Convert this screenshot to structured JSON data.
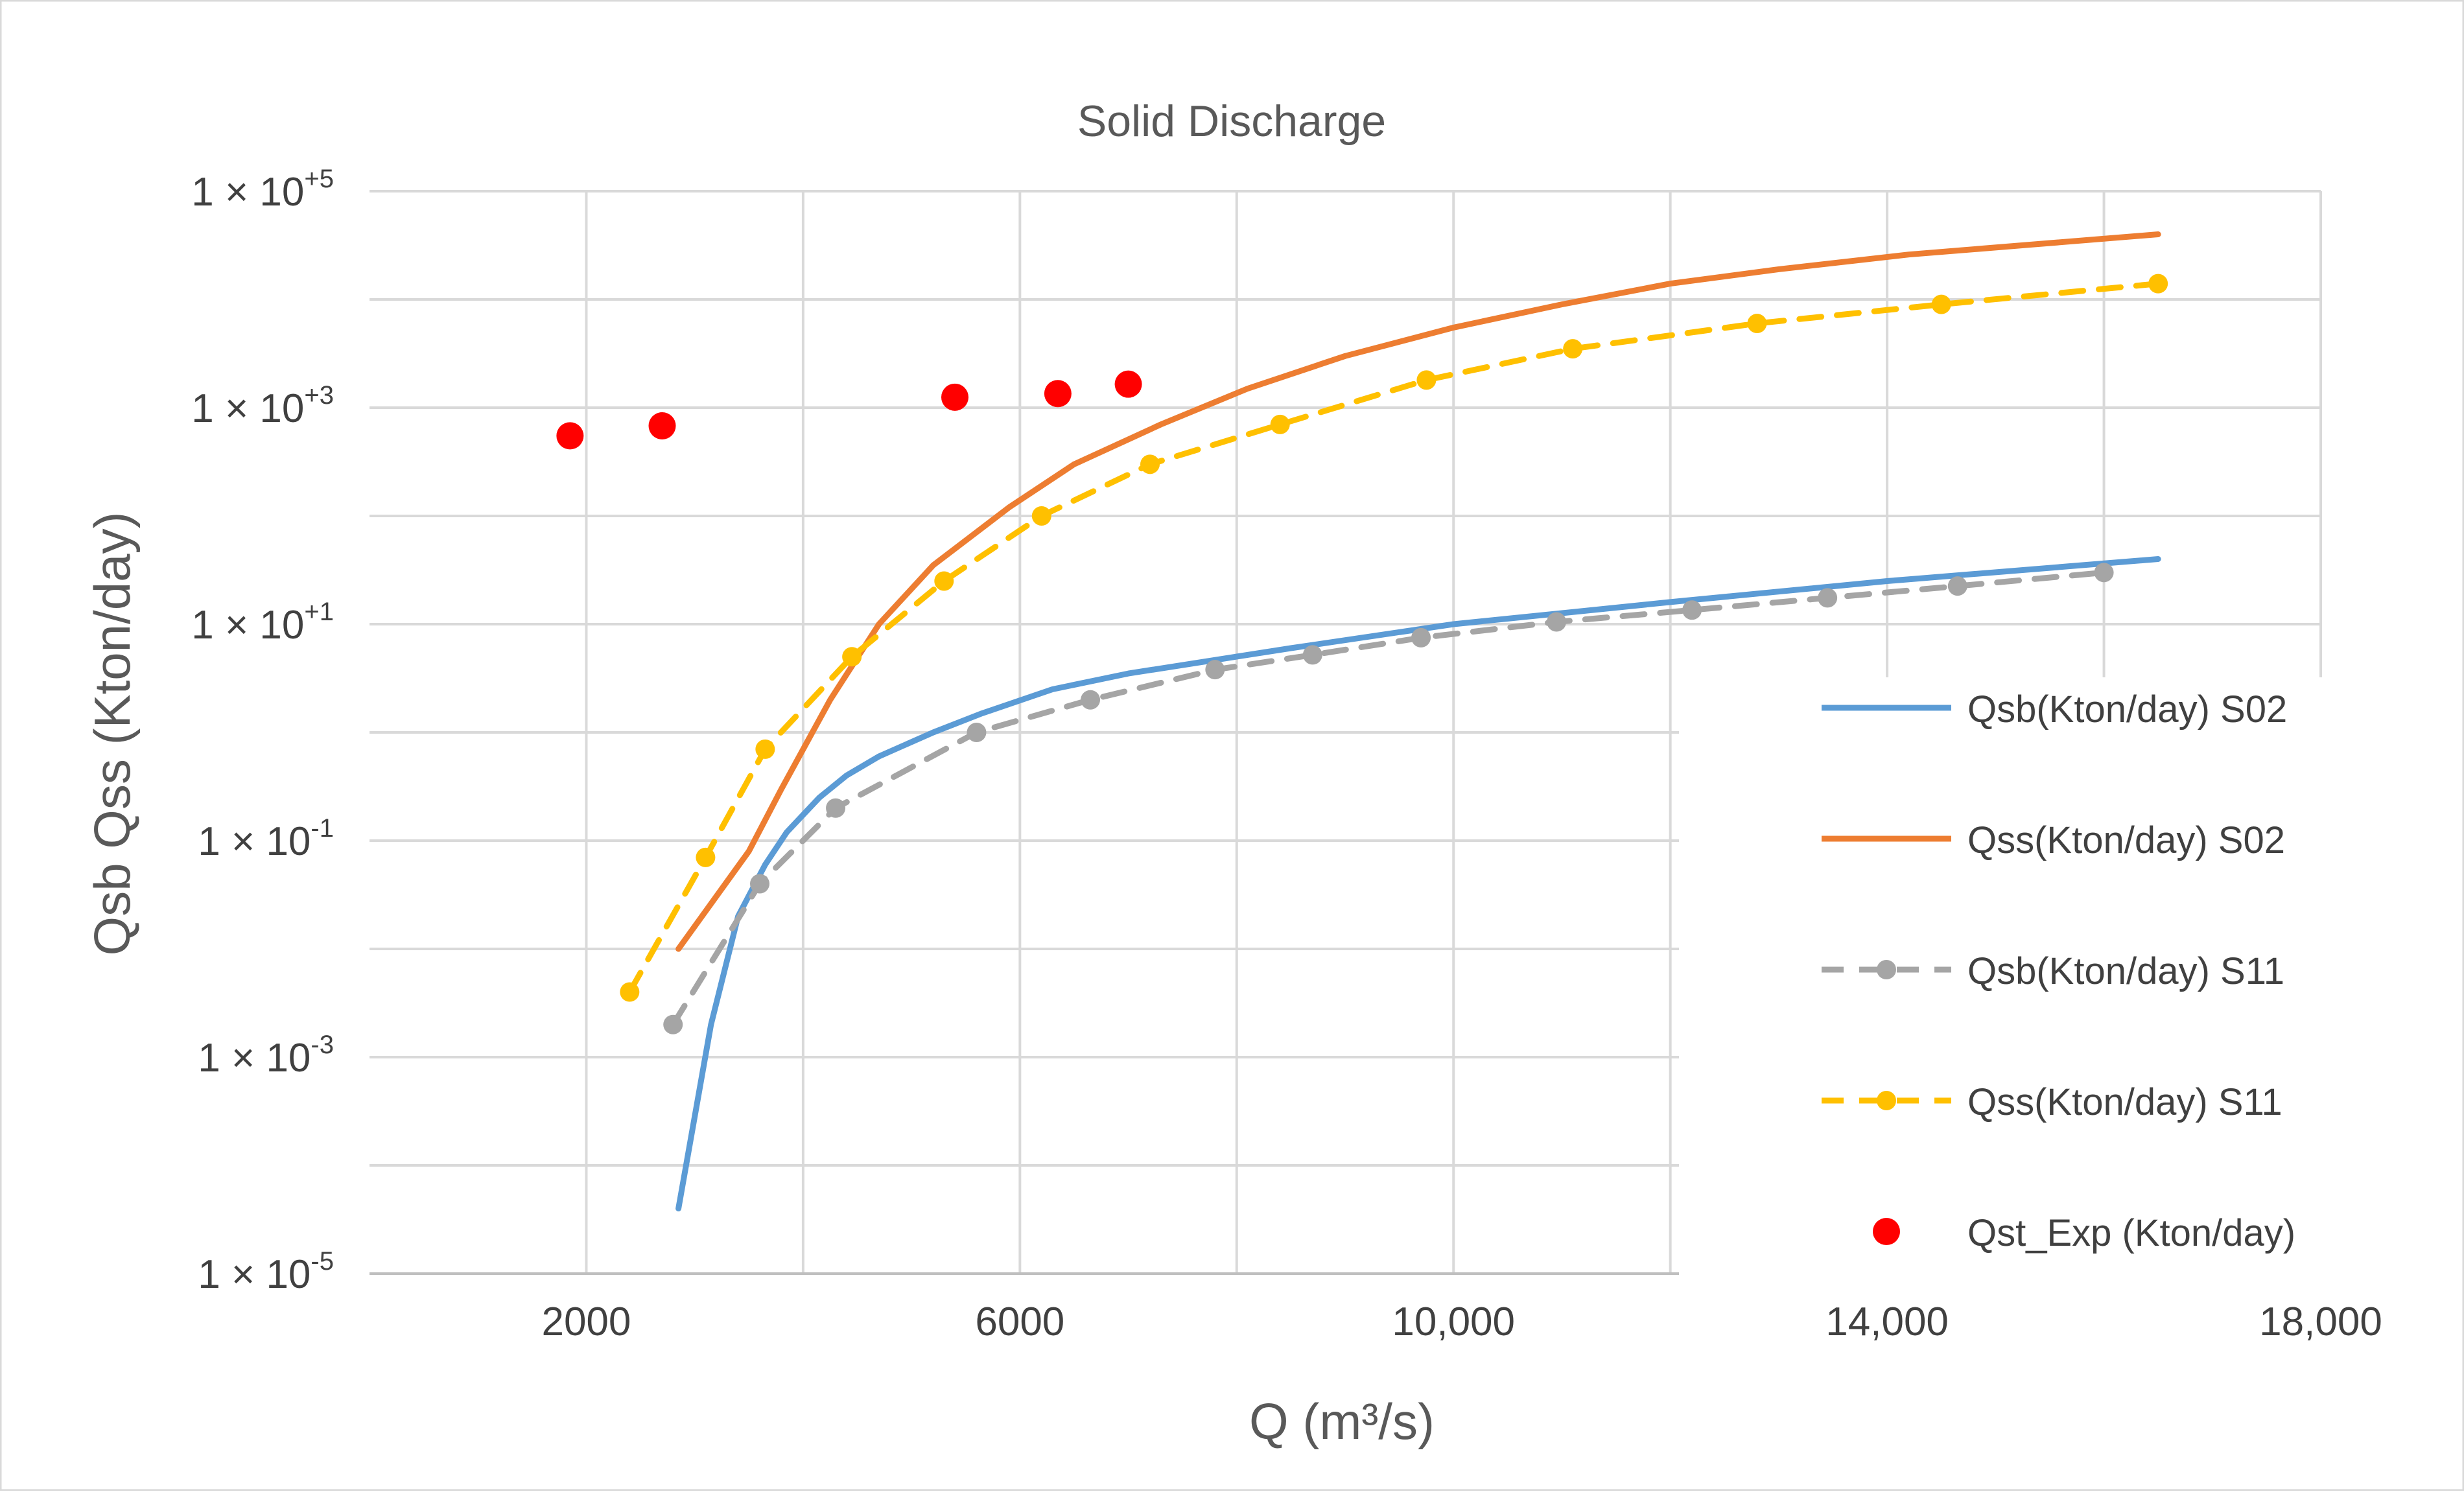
{
  "chart_data": {
    "type": "line",
    "title": "Solid Discharge",
    "xlabel": "Q (m³/s)",
    "ylabel": "Qsb Qss (Kton/day)",
    "y_scale": "log",
    "ylim": [
      1e-05,
      100000
    ],
    "xlim": [
      0,
      18000
    ],
    "x_ticks": [
      {
        "value": 2000,
        "label": "2000"
      },
      {
        "value": 6000,
        "label": "6000"
      },
      {
        "value": 10000,
        "label": "10,000"
      },
      {
        "value": 14000,
        "label": "14,000"
      },
      {
        "value": 18000,
        "label": "18,000"
      }
    ],
    "y_ticks": [
      {
        "value": 1e-05,
        "base": "1 × 10",
        "exp": "-5"
      },
      {
        "value": 0.001,
        "base": "1 × 10",
        "exp": "-3"
      },
      {
        "value": 0.1,
        "base": "1 × 10",
        "exp": "-1"
      },
      {
        "value": 10,
        "base": "1 × 10",
        "exp": "+1"
      },
      {
        "value": 1000,
        "base": "1 × 10",
        "exp": "+3"
      },
      {
        "value": 100000,
        "base": "1 × 10",
        "exp": "+5"
      }
    ],
    "grid": true,
    "legend_position": "right",
    "series": [
      {
        "name": "Qsb(Kton/day) S02",
        "color": "#5b9bd5",
        "style": "solid",
        "marker": "none",
        "x": [
          2850,
          3150,
          3400,
          3650,
          3850,
          4150,
          4400,
          4700,
          5200,
          5650,
          6300,
          7000,
          8500,
          10000,
          12000,
          14000,
          16500
        ],
        "y": [
          4e-05,
          0.002,
          0.02,
          0.06,
          0.12,
          0.25,
          0.4,
          0.6,
          1.0,
          1.5,
          2.5,
          3.5,
          6,
          10,
          16,
          25,
          40
        ]
      },
      {
        "name": "Qss(Kton/day) S02",
        "color": "#ed7d31",
        "style": "solid",
        "marker": "none",
        "x": [
          2850,
          3500,
          3800,
          4250,
          4700,
          5200,
          5900,
          6500,
          7300,
          8100,
          9000,
          10000,
          11000,
          12000,
          13000,
          14200,
          16500
        ],
        "y": [
          0.01,
          0.08,
          0.3,
          2,
          10,
          35,
          120,
          300,
          700,
          1500,
          3000,
          5500,
          9000,
          14000,
          19000,
          26000,
          40000
        ]
      },
      {
        "name": "Qsb(Kton/day) S11",
        "color": "#a5a5a5",
        "style": "dashed",
        "marker": "circle",
        "x": [
          2800,
          3600,
          4300,
          5600,
          6650,
          7800,
          8700,
          9700,
          10950,
          12200,
          13450,
          14650,
          16000
        ],
        "y": [
          0.002,
          0.04,
          0.2,
          1.0,
          2.0,
          3.8,
          5.2,
          7.5,
          10.5,
          13.5,
          17.5,
          22.5,
          30
        ]
      },
      {
        "name": "Qss(Kton/day) S11",
        "color": "#ffc000",
        "style": "dashed",
        "marker": "circle",
        "x": [
          2400,
          3100,
          3650,
          4450,
          5300,
          6200,
          7200,
          8400,
          9750,
          11100,
          12800,
          14500,
          16500
        ],
        "y": [
          0.004,
          0.07,
          0.7,
          5,
          25,
          100,
          300,
          700,
          1800,
          3500,
          6000,
          9000,
          14000
        ]
      },
      {
        "name": "Qst_Exp (Kton/day)",
        "color": "#ff0000",
        "style": "none",
        "marker": "circle",
        "x": [
          1850,
          2700,
          5400,
          6350,
          7000
        ],
        "y": [
          550,
          680,
          1250,
          1350,
          1650
        ]
      }
    ]
  }
}
